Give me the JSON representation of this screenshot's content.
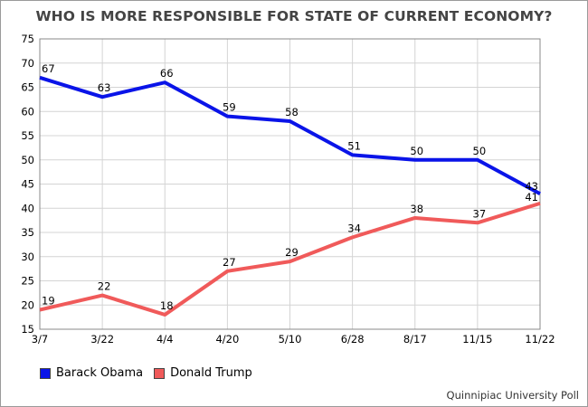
{
  "chart_data": {
    "type": "line",
    "title": "WHO IS MORE RESPONSIBLE FOR STATE OF CURRENT ECONOMY?",
    "categories": [
      "3/7",
      "3/22",
      "4/4",
      "4/20",
      "5/10",
      "6/28",
      "8/17",
      "11/15",
      "11/22"
    ],
    "series": [
      {
        "name": "Barack Obama",
        "color": "#0a14e8",
        "values": [
          67,
          63,
          66,
          59,
          58,
          51,
          50,
          50,
          43
        ]
      },
      {
        "name": "Donald Trump",
        "color": "#f05a5a",
        "values": [
          19,
          22,
          18,
          27,
          29,
          34,
          38,
          37,
          41
        ]
      }
    ],
    "ylim": [
      15,
      75
    ],
    "yticks": [
      15,
      20,
      25,
      30,
      35,
      40,
      45,
      50,
      55,
      60,
      65,
      70,
      75
    ],
    "grid": true,
    "legend": "bottom-left",
    "xlabel": "",
    "ylabel": ""
  },
  "source": "Quinnipiac University Poll"
}
